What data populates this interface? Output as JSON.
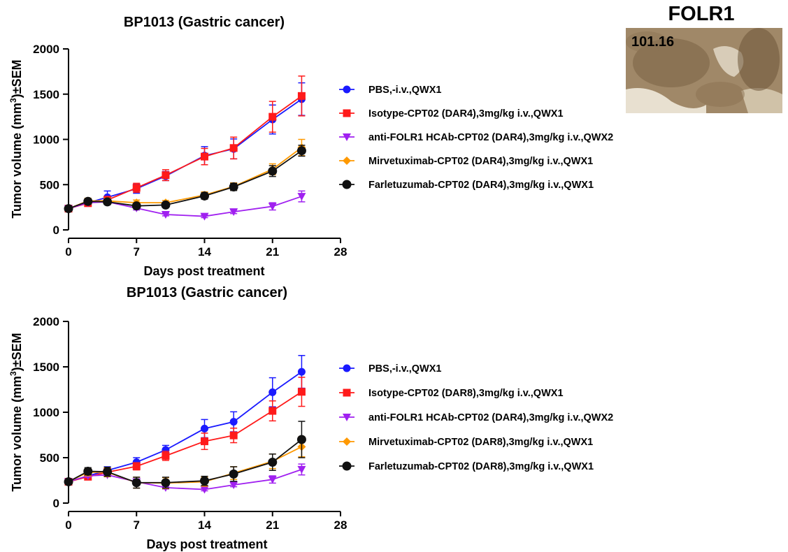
{
  "chart_data": [
    {
      "type": "line",
      "title": "BP1013 (Gastric cancer)",
      "xlabel": "Days post treatment",
      "ylabel": "Tumor volume (mm³)±SEM",
      "ylabel_parts": {
        "pre": "Tumor volume (mm",
        "sup": "3",
        "post": ")±SEM"
      },
      "xlim": [
        0,
        28
      ],
      "ylim": [
        0,
        2000
      ],
      "xticks": [
        0,
        7,
        14,
        21,
        28
      ],
      "yticks": [
        0,
        500,
        1000,
        1500,
        2000
      ],
      "grid": false,
      "legend_position": "right",
      "series": [
        {
          "name": "PBS,-i.v.,QWX1",
          "color": "#1a1aff",
          "marker": "circle",
          "x": [
            0,
            2,
            4,
            7,
            10,
            14,
            17,
            21,
            24
          ],
          "y": [
            235,
            300,
            360,
            455,
            595,
            820,
            895,
            1220,
            1445
          ],
          "err": [
            20,
            25,
            70,
            50,
            50,
            100,
            110,
            160,
            180
          ]
        },
        {
          "name": "Isotype-CPT02 (DAR4),3mg/kg i.v.,QWX1",
          "color": "#ff1a1a",
          "marker": "square",
          "x": [
            0,
            2,
            4,
            7,
            10,
            14,
            17,
            21,
            24
          ],
          "y": [
            235,
            295,
            330,
            465,
            605,
            810,
            905,
            1250,
            1480
          ],
          "err": [
            15,
            25,
            40,
            50,
            60,
            90,
            120,
            170,
            220
          ]
        },
        {
          "name": "anti-FOLR1 HCAb-CPT02 (DAR4),3mg/kg i.v.,QWX2",
          "color": "#a020f0",
          "marker": "triangle-down",
          "x": [
            0,
            2,
            4,
            7,
            10,
            14,
            17,
            21,
            24
          ],
          "y": [
            235,
            300,
            310,
            240,
            170,
            150,
            200,
            260,
            370
          ],
          "err": [
            10,
            15,
            20,
            20,
            15,
            15,
            20,
            40,
            60
          ]
        },
        {
          "name": "Mirvetuximab-CPT02 (DAR4),3mg/kg i.v.,QWX1",
          "color": "#ff9900",
          "marker": "diamond",
          "x": [
            0,
            2,
            4,
            7,
            10,
            14,
            17,
            21,
            24
          ],
          "y": [
            235,
            320,
            320,
            300,
            300,
            385,
            480,
            670,
            910
          ],
          "err": [
            10,
            30,
            30,
            30,
            25,
            35,
            40,
            60,
            90
          ]
        },
        {
          "name": "Farletuzumab-CPT02 (DAR4),3mg/kg i.v.,QWX1",
          "color": "#111111",
          "marker": "circle-big",
          "x": [
            0,
            2,
            4,
            7,
            10,
            14,
            17,
            21,
            24
          ],
          "y": [
            235,
            315,
            310,
            265,
            275,
            375,
            475,
            650,
            875
          ],
          "err": [
            10,
            30,
            30,
            25,
            25,
            35,
            40,
            60,
            60
          ]
        }
      ]
    },
    {
      "type": "line",
      "title": "BP1013 (Gastric cancer)",
      "xlabel": "Days post treatment",
      "ylabel": "Tumor volume (mm³)±SEM",
      "ylabel_parts": {
        "pre": "Tumor volume (mm",
        "sup": "3",
        "post": ")±SEM"
      },
      "xlim": [
        0,
        28
      ],
      "ylim": [
        0,
        2000
      ],
      "xticks": [
        0,
        7,
        14,
        21,
        28
      ],
      "yticks": [
        0,
        500,
        1000,
        1500,
        2000
      ],
      "grid": false,
      "legend_position": "right",
      "series": [
        {
          "name": "PBS,-i.v.,QWX1",
          "color": "#1a1aff",
          "marker": "circle",
          "x": [
            0,
            2,
            4,
            7,
            10,
            14,
            17,
            21,
            24
          ],
          "y": [
            235,
            300,
            360,
            450,
            585,
            820,
            895,
            1220,
            1445
          ],
          "err": [
            20,
            30,
            40,
            50,
            50,
            100,
            110,
            160,
            180
          ]
        },
        {
          "name": "Isotype-CPT02 (DAR8),3mg/kg i.v.,QWX1",
          "color": "#ff1a1a",
          "marker": "square",
          "x": [
            0,
            2,
            4,
            7,
            10,
            14,
            17,
            21,
            24
          ],
          "y": [
            235,
            290,
            340,
            405,
            520,
            680,
            745,
            1015,
            1225
          ],
          "err": [
            15,
            25,
            40,
            40,
            50,
            90,
            80,
            110,
            160
          ]
        },
        {
          "name": "anti-FOLR1 HCAb-CPT02 (DAR4),3mg/kg i.v.,QWX2",
          "color": "#a020f0",
          "marker": "triangle-down",
          "x": [
            0,
            2,
            4,
            7,
            10,
            14,
            17,
            21,
            24
          ],
          "y": [
            235,
            300,
            310,
            235,
            170,
            150,
            200,
            260,
            370
          ],
          "err": [
            10,
            15,
            20,
            20,
            15,
            15,
            20,
            40,
            60
          ]
        },
        {
          "name": "Mirvetuximab-CPT02 (DAR8),3mg/kg i.v.,QWX1",
          "color": "#ff9900",
          "marker": "diamond",
          "x": [
            0,
            2,
            4,
            7,
            10,
            14,
            17,
            21,
            24
          ],
          "y": [
            235,
            340,
            340,
            225,
            220,
            235,
            330,
            460,
            620
          ],
          "err": [
            10,
            40,
            50,
            60,
            60,
            50,
            70,
            80,
            110
          ]
        },
        {
          "name": "Farletuzumab-CPT02 (DAR8),3mg/kg i.v.,QWX1",
          "color": "#111111",
          "marker": "circle-big",
          "x": [
            0,
            2,
            4,
            7,
            10,
            14,
            17,
            21,
            24
          ],
          "y": [
            235,
            350,
            345,
            225,
            225,
            245,
            320,
            450,
            700
          ],
          "err": [
            10,
            40,
            50,
            60,
            60,
            50,
            80,
            90,
            200
          ]
        }
      ]
    }
  ],
  "ihc_panel": {
    "title": "FOLR1",
    "score": "101.16"
  }
}
